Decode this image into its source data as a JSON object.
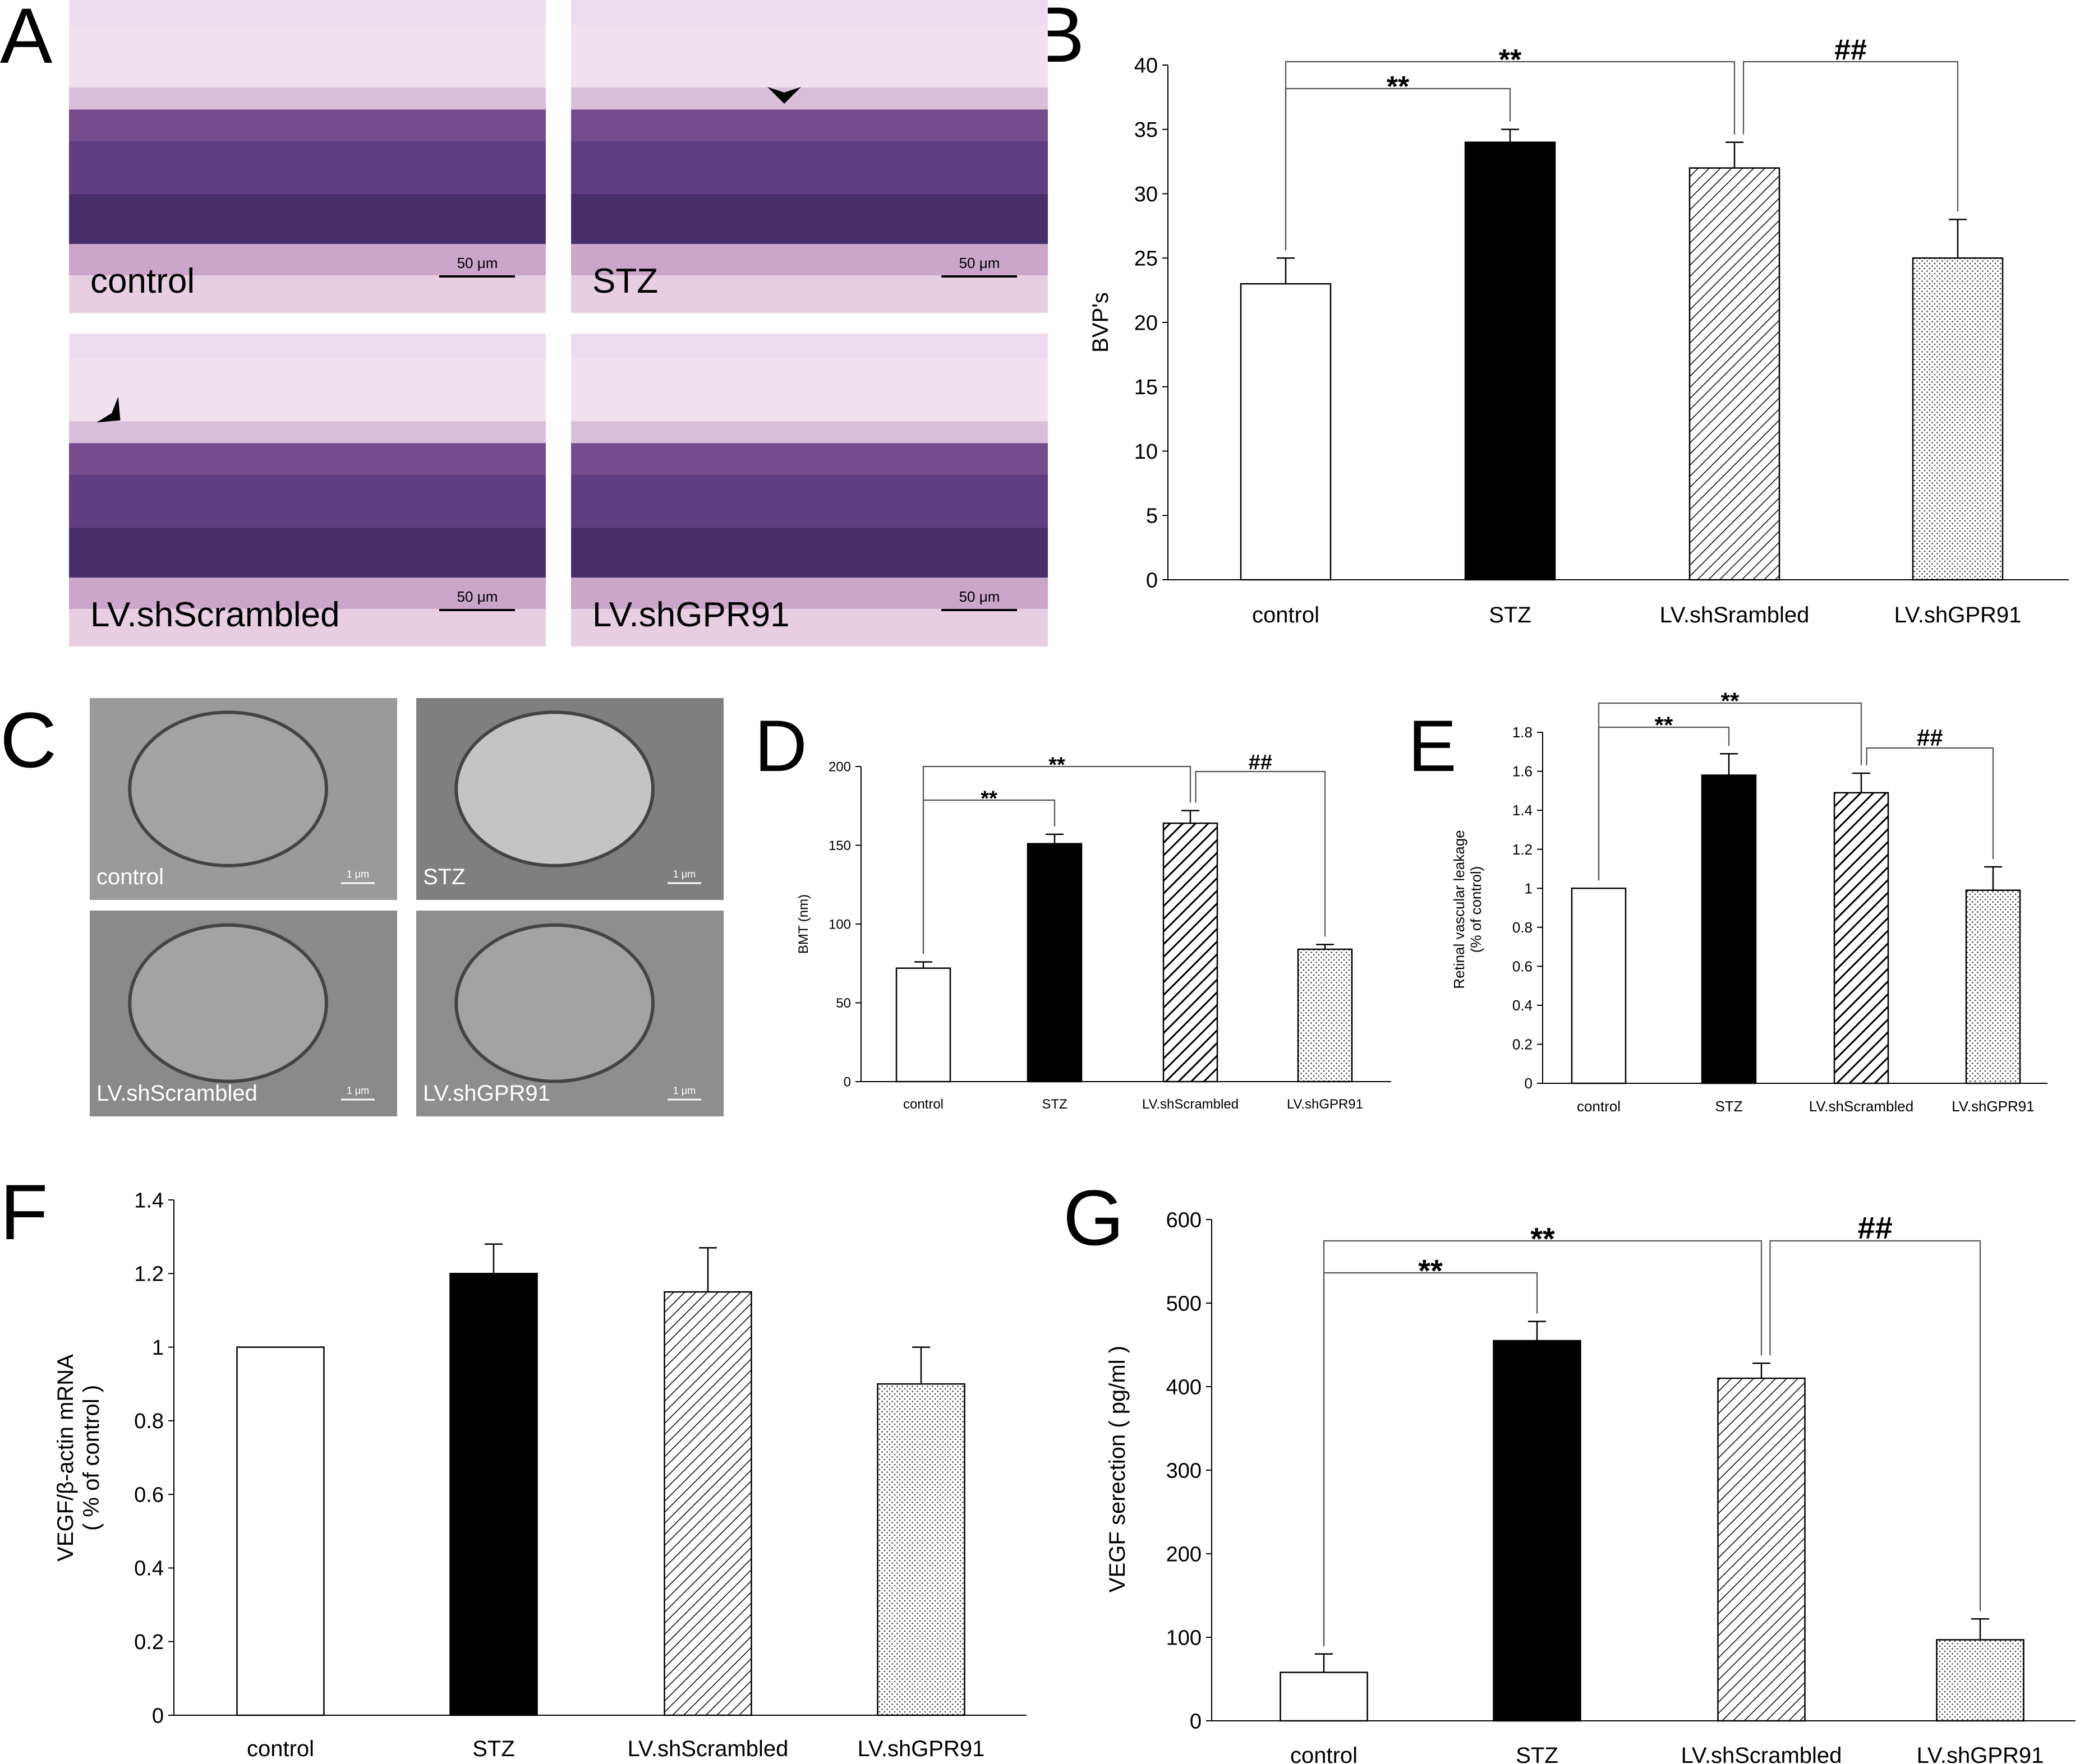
{
  "panels": {
    "A": {
      "label": "A",
      "images": [
        {
          "label": "control",
          "scalebar": "50 μm",
          "arrowhead": false,
          "tone": "#c9a7cc"
        },
        {
          "label": "STZ",
          "scalebar": "50 μm",
          "arrowhead": true,
          "tone": "#c6a4c9"
        },
        {
          "label": "LV.shScrambled",
          "scalebar": "50 μm",
          "arrowhead": true,
          "tone": "#c9a9cd"
        },
        {
          "label": "LV.shGPR91",
          "scalebar": "50 μm",
          "arrowhead": false,
          "tone": "#c7a7cb"
        }
      ]
    },
    "C": {
      "label": "C",
      "images": [
        {
          "label": "control",
          "scalebar": "1 μm",
          "tone": "#9a9a9a"
        },
        {
          "label": "STZ",
          "scalebar": "1 μm",
          "tone": "#7f7f7f"
        },
        {
          "label": "LV.shScrambled",
          "scalebar": "1 μm",
          "tone": "#8a8a8a"
        },
        {
          "label": "LV.shGPR91",
          "scalebar": "1 μm",
          "tone": "#8e8e8e"
        }
      ]
    }
  },
  "chart_data": [
    {
      "panel": "B",
      "type": "bar",
      "categories": [
        "control",
        "STZ",
        "LV.shSrambled",
        "LV.shGPR91"
      ],
      "values": [
        23,
        34,
        32,
        25
      ],
      "errors": [
        2,
        1,
        2,
        3
      ],
      "fills": [
        "white",
        "black",
        "diag",
        "dots"
      ],
      "ylabel": "BVP's",
      "xlabel": "",
      "ylim": [
        0,
        40
      ],
      "yticks": [
        "0",
        "5",
        "10",
        "15",
        "20",
        "25",
        "30",
        "35",
        "40"
      ],
      "brackets": [
        {
          "from": 0,
          "to": 1,
          "label": "**"
        },
        {
          "from": 0,
          "to": 2,
          "label": "**"
        },
        {
          "from": 2,
          "to": 3,
          "label": "##"
        }
      ]
    },
    {
      "panel": "D",
      "type": "bar",
      "categories": [
        "control",
        "STZ",
        "LV.shScrambled",
        "LV.shGPR91"
      ],
      "values": [
        72,
        151,
        164,
        84
      ],
      "errors": [
        4,
        6,
        8,
        3
      ],
      "fills": [
        "white",
        "black",
        "diagbold",
        "dots"
      ],
      "ylabel": "BMT (nm)",
      "xlabel": "",
      "ylim": [
        0,
        200
      ],
      "yticks": [
        "0",
        "50",
        "100",
        "150",
        "200"
      ],
      "brackets": [
        {
          "from": 0,
          "to": 1,
          "label": "**"
        },
        {
          "from": 0,
          "to": 2,
          "label": "**"
        },
        {
          "from": 2,
          "to": 3,
          "label": "##"
        }
      ]
    },
    {
      "panel": "E",
      "type": "bar",
      "categories": [
        "control",
        "STZ",
        "LV.shScrambled",
        "LV.shGPR91"
      ],
      "values": [
        1.0,
        1.58,
        1.49,
        0.99
      ],
      "errors": [
        0,
        0.11,
        0.1,
        0.12
      ],
      "fills": [
        "white",
        "black",
        "diagbold",
        "dots"
      ],
      "ylabel": "Retinal vascular leakage",
      "ylabel2": "(% of control)",
      "xlabel": "",
      "ylim": [
        0,
        1.8
      ],
      "yticks": [
        "0",
        "0.2",
        "0.4",
        "0.6",
        "0.8",
        "1",
        "1.2",
        "1.4",
        "1.6",
        "1.8"
      ],
      "brackets": [
        {
          "from": 0,
          "to": 1,
          "label": "**"
        },
        {
          "from": 0,
          "to": 2,
          "label": "**"
        },
        {
          "from": 2,
          "to": 3,
          "label": "##"
        }
      ]
    },
    {
      "panel": "F",
      "type": "bar",
      "categories": [
        "control",
        "STZ",
        "LV.shScrambled",
        "LV.shGPR91"
      ],
      "values": [
        1.0,
        1.2,
        1.15,
        0.9
      ],
      "errors": [
        0,
        0.08,
        0.12,
        0.1
      ],
      "fills": [
        "white",
        "black",
        "diag",
        "dots"
      ],
      "ylabel": "VEGF/β-actin mRNA",
      "ylabel2": "( % of control )",
      "xlabel": "",
      "ylim": [
        0,
        1.4
      ],
      "yticks": [
        "0",
        "0.2",
        "0.4",
        "0.6",
        "0.8",
        "1",
        "1.2",
        "1.4"
      ],
      "brackets": [
        {
          "from": 2,
          "to": 3,
          "label": "#"
        }
      ]
    },
    {
      "panel": "G",
      "type": "bar",
      "categories": [
        "control",
        "STZ",
        "LV.shScrambled",
        "LV.shGPR91"
      ],
      "values": [
        58,
        455,
        410,
        97
      ],
      "errors": [
        22,
        23,
        18,
        25
      ],
      "fills": [
        "white",
        "black",
        "diag",
        "dots"
      ],
      "ylabel": "VEGF serection ( pg/ml )",
      "xlabel": "",
      "ylim": [
        0,
        600
      ],
      "yticks": [
        "0",
        "100",
        "200",
        "300",
        "400",
        "500",
        "600"
      ],
      "brackets": [
        {
          "from": 0,
          "to": 1,
          "label": "**"
        },
        {
          "from": 0,
          "to": 2,
          "label": "**"
        },
        {
          "from": 2,
          "to": 3,
          "label": "##"
        }
      ]
    }
  ]
}
